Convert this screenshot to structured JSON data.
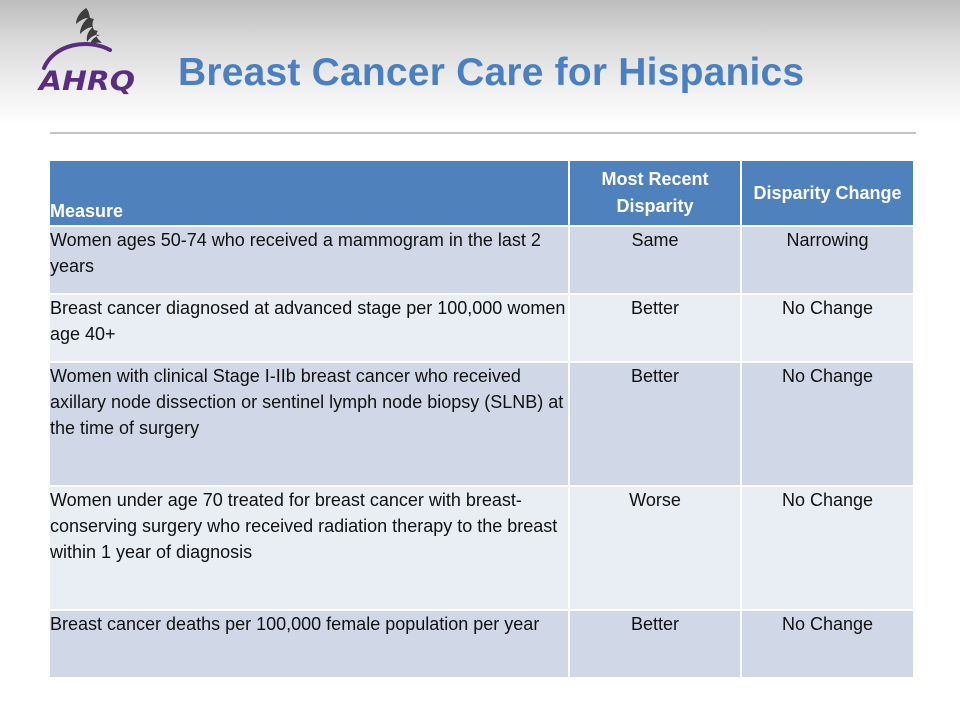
{
  "slide": {
    "title": "Breast Cancer Care for Hispanics",
    "logo_text": "AHRQ",
    "logo_icon": "hhs-eagle-icon"
  },
  "colors": {
    "title": "#4a7fc1",
    "header_fill": "#4f81bd",
    "row_odd": "#d0d8e8",
    "row_even": "#e9edf4",
    "logo_purple": "#5a2d83"
  },
  "table": {
    "headers": {
      "measure": "Measure",
      "recent": "Most Recent Disparity",
      "change": "Disparity Change"
    },
    "rows": [
      {
        "measure": "Women ages 50-74 who received a mammogram in the last 2 years",
        "recent": "Same",
        "change": "Narrowing"
      },
      {
        "measure": "Breast cancer diagnosed at advanced stage per 100,000 women age 40+",
        "recent": "Better",
        "change": "No Change"
      },
      {
        "measure": "Women with clinical Stage I-IIb breast cancer who received axillary node dissection or sentinel lymph node biopsy (SLNB) at the time of surgery",
        "recent": "Better",
        "change": "No Change"
      },
      {
        "measure": "Women under age 70 treated for breast cancer with breast-conserving surgery who received radiation therapy to the breast within 1 year of diagnosis",
        "recent": "Worse",
        "change": "No Change"
      },
      {
        "measure": "Breast cancer deaths per 100,000 female population per year",
        "recent": "Better",
        "change": "No Change"
      }
    ]
  }
}
